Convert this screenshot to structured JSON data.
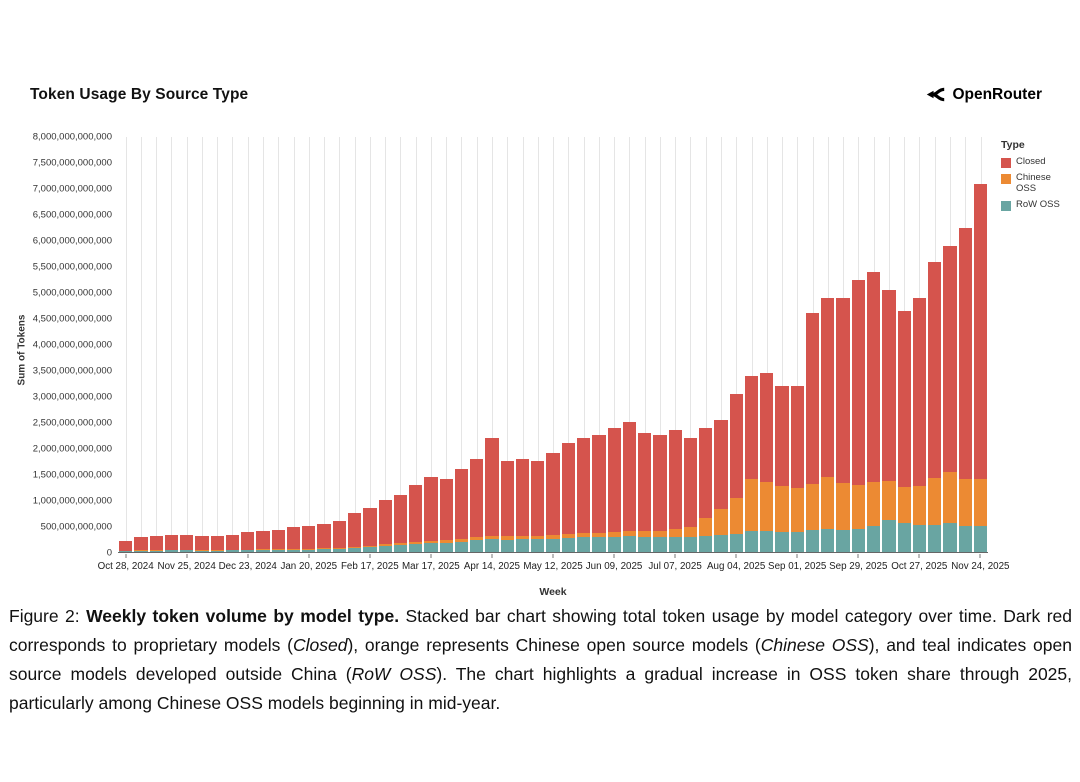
{
  "page": {
    "title": "Token Usage By Source Type",
    "brand": "OpenRouter"
  },
  "legend": {
    "title": "Type",
    "items": [
      {
        "label": "Closed",
        "color": "#d5544d"
      },
      {
        "label": "Chinese OSS",
        "color": "#ec8a33"
      },
      {
        "label": "RoW OSS",
        "color": "#69a5a2"
      }
    ]
  },
  "chart_data": {
    "type": "bar",
    "variant": "stacked",
    "title": "Token Usage By Source Type",
    "xlabel": "Week",
    "ylabel": "Sum of Tokens",
    "ylim": [
      0,
      8000000000000
    ],
    "ylim_billions": [
      0,
      8000
    ],
    "ytick_step_billions": 500,
    "ytick_labels": [
      "0",
      "500,000,000,000",
      "1,000,000,000,000",
      "1,500,000,000,000",
      "2,000,000,000,000",
      "2,500,000,000,000",
      "3,000,000,000,000",
      "3,500,000,000,000",
      "4,000,000,000,000",
      "4,500,000,000,000",
      "5,000,000,000,000",
      "5,500,000,000,000",
      "6,000,000,000,000",
      "6,500,000,000,000",
      "7,000,000,000,000",
      "7,500,000,000,000",
      "8,000,000,000,000"
    ],
    "legend_title": "Type",
    "legend_position": "right",
    "grid": "vertical-only",
    "x_tick_every": 4,
    "values_unit": "billions of tokens",
    "categories": [
      "Oct 28, 2024",
      "Nov 04, 2024",
      "Nov 11, 2024",
      "Nov 18, 2024",
      "Nov 25, 2024",
      "Dec 02, 2024",
      "Dec 09, 2024",
      "Dec 16, 2024",
      "Dec 23, 2024",
      "Dec 30, 2024",
      "Jan 06, 2025",
      "Jan 13, 2025",
      "Jan 20, 2025",
      "Jan 27, 2025",
      "Feb 03, 2025",
      "Feb 10, 2025",
      "Feb 17, 2025",
      "Feb 24, 2025",
      "Mar 03, 2025",
      "Mar 10, 2025",
      "Mar 17, 2025",
      "Mar 24, 2025",
      "Mar 31, 2025",
      "Apr 07, 2025",
      "Apr 14, 2025",
      "Apr 21, 2025",
      "Apr 28, 2025",
      "May 05, 2025",
      "May 12, 2025",
      "May 19, 2025",
      "May 26, 2025",
      "Jun 02, 2025",
      "Jun 09, 2025",
      "Jun 16, 2025",
      "Jun 23, 2025",
      "Jun 30, 2025",
      "Jul 07, 2025",
      "Jul 14, 2025",
      "Jul 21, 2025",
      "Jul 28, 2025",
      "Aug 04, 2025",
      "Aug 11, 2025",
      "Aug 18, 2025",
      "Aug 25, 2025",
      "Sep 01, 2025",
      "Sep 08, 2025",
      "Sep 15, 2025",
      "Sep 22, 2025",
      "Sep 29, 2025",
      "Oct 06, 2025",
      "Oct 13, 2025",
      "Oct 20, 2025",
      "Oct 27, 2025",
      "Nov 03, 2025",
      "Nov 10, 2025",
      "Nov 17, 2025",
      "Nov 24, 2025"
    ],
    "series": [
      {
        "name": "RoW OSS",
        "color": "#69a5a2",
        "values_billions": [
          20,
          25,
          28,
          30,
          30,
          28,
          28,
          30,
          35,
          38,
          40,
          45,
          48,
          55,
          60,
          75,
          90,
          110,
          130,
          150,
          170,
          180,
          200,
          230,
          250,
          240,
          250,
          250,
          260,
          270,
          280,
          280,
          290,
          300,
          290,
          280,
          290,
          280,
          300,
          320,
          350,
          400,
          400,
          380,
          380,
          420,
          450,
          430,
          450,
          500,
          620,
          550,
          520,
          530,
          550,
          500,
          500
        ]
      },
      {
        "name": "Chinese OSS",
        "color": "#ec8a33",
        "values_billions": [
          5,
          8,
          8,
          10,
          10,
          9,
          9,
          10,
          10,
          12,
          12,
          15,
          15,
          18,
          20,
          25,
          30,
          35,
          40,
          45,
          50,
          50,
          55,
          60,
          65,
          60,
          60,
          65,
          70,
          75,
          80,
          90,
          100,
          110,
          120,
          130,
          160,
          200,
          350,
          500,
          700,
          1000,
          950,
          900,
          850,
          900,
          1000,
          900,
          850,
          850,
          750,
          700,
          750,
          900,
          1000,
          900,
          900
        ]
      },
      {
        "name": "Closed",
        "color": "#d5544d",
        "values_billions": [
          195,
          247,
          264,
          290,
          290,
          263,
          263,
          290,
          335,
          350,
          378,
          420,
          437,
          477,
          520,
          650,
          730,
          855,
          930,
          1105,
          1230,
          1170,
          1345,
          1510,
          1885,
          1450,
          1490,
          1435,
          1570,
          1755,
          1840,
          1880,
          2010,
          2090,
          1890,
          1840,
          1900,
          1720,
          1750,
          1730,
          2000,
          2000,
          2100,
          1920,
          1970,
          3280,
          3450,
          3570,
          3950,
          4050,
          3680,
          3400,
          3630,
          4170,
          4350,
          4850,
          5700
        ]
      }
    ]
  },
  "caption": {
    "segments": [
      {
        "text": "Figure 2: ",
        "style": "normal"
      },
      {
        "text": "Weekly token volume by model type.",
        "style": "bold"
      },
      {
        "text": " Stacked bar chart showing total token usage by model category over time. Dark red corresponds to proprietary models (",
        "style": "normal"
      },
      {
        "text": "Closed",
        "style": "italic"
      },
      {
        "text": "), orange represents Chinese open source models (",
        "style": "normal"
      },
      {
        "text": "Chinese OSS",
        "style": "italic"
      },
      {
        "text": "), and teal indicates open source models developed outside China (",
        "style": "normal"
      },
      {
        "text": "RoW OSS",
        "style": "italic"
      },
      {
        "text": "). The chart highlights a gradual increase in OSS token share through 2025, particularly among Chinese OSS models beginning in mid-year.",
        "style": "normal"
      }
    ]
  }
}
